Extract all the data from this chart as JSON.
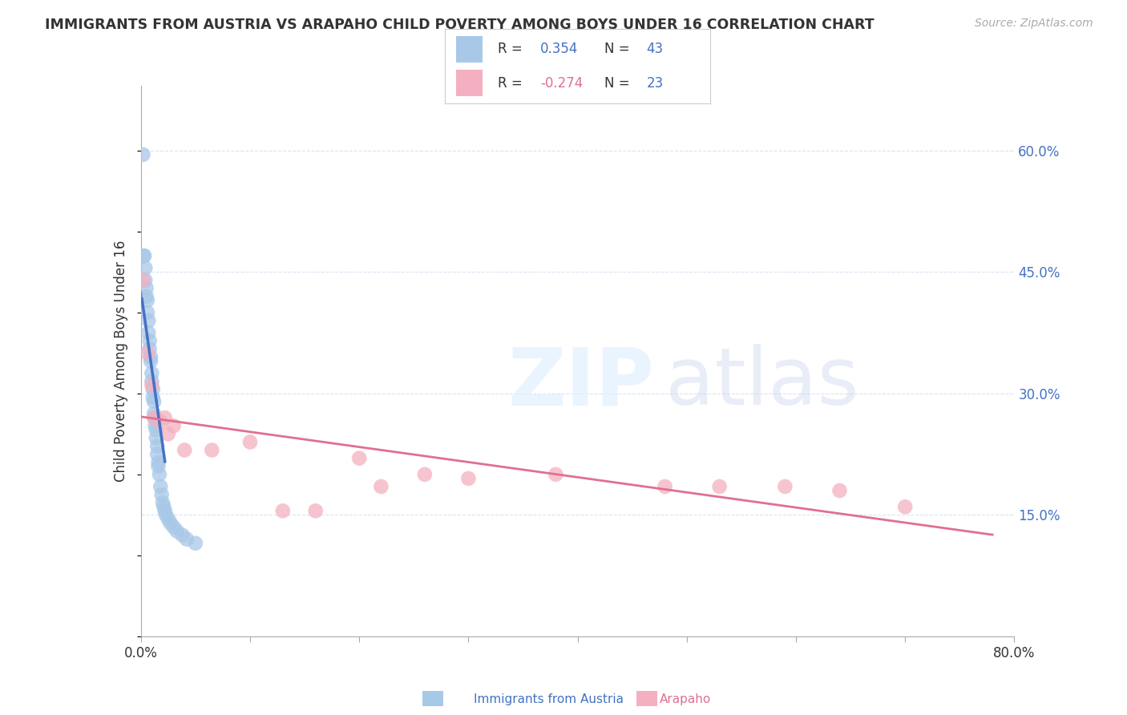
{
  "title": "IMMIGRANTS FROM AUSTRIA VS ARAPAHO CHILD POVERTY AMONG BOYS UNDER 16 CORRELATION CHART",
  "source": "Source: ZipAtlas.com",
  "ylabel": "Child Poverty Among Boys Under 16",
  "y_tick_vals": [
    0.15,
    0.3,
    0.45,
    0.6
  ],
  "xlim": [
    0.0,
    0.8
  ],
  "ylim": [
    0.0,
    0.68
  ],
  "blue_R": 0.354,
  "blue_N": 43,
  "pink_R": -0.274,
  "pink_N": 23,
  "blue_color": "#a8c8e8",
  "pink_color": "#f4b0c0",
  "blue_line_color": "#4472c4",
  "pink_line_color": "#e07090",
  "grid_color": "#d8e4f0",
  "title_color": "#333333",
  "source_color": "#aaaaaa",
  "blue_scatter_x": [
    0.002,
    0.003,
    0.003,
    0.004,
    0.004,
    0.005,
    0.005,
    0.006,
    0.006,
    0.007,
    0.007,
    0.008,
    0.008,
    0.009,
    0.009,
    0.01,
    0.01,
    0.011,
    0.011,
    0.012,
    0.012,
    0.013,
    0.013,
    0.014,
    0.014,
    0.015,
    0.015,
    0.016,
    0.016,
    0.017,
    0.018,
    0.019,
    0.02,
    0.021,
    0.022,
    0.023,
    0.025,
    0.027,
    0.03,
    0.033,
    0.038,
    0.042,
    0.05
  ],
  "blue_scatter_y": [
    0.595,
    0.47,
    0.47,
    0.455,
    0.44,
    0.43,
    0.42,
    0.415,
    0.4,
    0.39,
    0.375,
    0.365,
    0.355,
    0.345,
    0.34,
    0.325,
    0.315,
    0.305,
    0.295,
    0.29,
    0.275,
    0.27,
    0.26,
    0.255,
    0.245,
    0.235,
    0.225,
    0.215,
    0.21,
    0.2,
    0.185,
    0.175,
    0.165,
    0.16,
    0.155,
    0.15,
    0.145,
    0.14,
    0.135,
    0.13,
    0.125,
    0.12,
    0.115
  ],
  "pink_scatter_x": [
    0.002,
    0.006,
    0.01,
    0.012,
    0.018,
    0.022,
    0.025,
    0.03,
    0.04,
    0.065,
    0.1,
    0.13,
    0.16,
    0.2,
    0.22,
    0.26,
    0.3,
    0.38,
    0.48,
    0.53,
    0.59,
    0.64,
    0.7
  ],
  "pink_scatter_y": [
    0.44,
    0.35,
    0.31,
    0.27,
    0.265,
    0.27,
    0.25,
    0.26,
    0.23,
    0.23,
    0.24,
    0.155,
    0.155,
    0.22,
    0.185,
    0.2,
    0.195,
    0.2,
    0.185,
    0.185,
    0.185,
    0.18,
    0.16
  ],
  "x_ticks": [
    0.0,
    0.1,
    0.2,
    0.3,
    0.4,
    0.5,
    0.6,
    0.7,
    0.8
  ]
}
